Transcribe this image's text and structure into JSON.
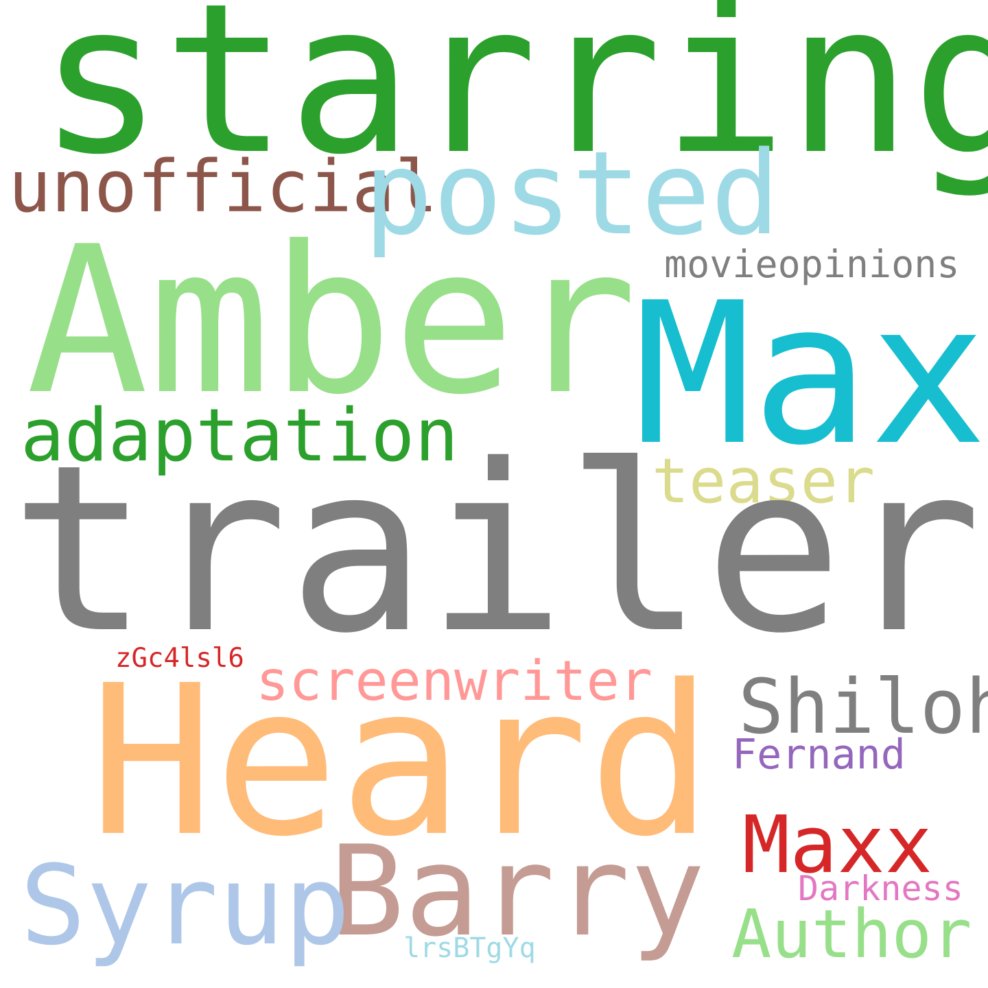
{
  "words": {
    "starring": {
      "text": "starring",
      "color": "#2ca02c"
    },
    "unofficial": {
      "text": "unofficial",
      "color": "#8c564b"
    },
    "posted": {
      "text": "posted",
      "color": "#9edae5"
    },
    "amber": {
      "text": "Amber",
      "color": "#98df8a"
    },
    "movieopinions": {
      "text": "movieopinions",
      "color": "#7f7f7f"
    },
    "max": {
      "text": "Max",
      "color": "#17becf"
    },
    "adaptation": {
      "text": "adaptation",
      "color": "#2ca02c"
    },
    "teaser": {
      "text": "teaser",
      "color": "#dbdb8d"
    },
    "trailer": {
      "text": "trailer",
      "color": "#7f7f7f"
    },
    "zgc4lsl6": {
      "text": "zGc4lsl6",
      "color": "#d62728"
    },
    "screenwriter": {
      "text": "screenwriter",
      "color": "#ff9896"
    },
    "shiloh": {
      "text": "Shiloh",
      "color": "#7f7f7f"
    },
    "heard": {
      "text": "Heard",
      "color": "#ffbb78"
    },
    "fernand": {
      "text": "Fernand",
      "color": "#9467bd"
    },
    "maxx": {
      "text": "Maxx",
      "color": "#d62728"
    },
    "barry": {
      "text": "Barry",
      "color": "#c49c94"
    },
    "syrup": {
      "text": "Syrup",
      "color": "#aec7e8"
    },
    "darkness": {
      "text": "Darkness",
      "color": "#e377c2"
    },
    "author": {
      "text": "Author",
      "color": "#98df8a"
    },
    "lrsbtgyq": {
      "text": "lrsBTgYq",
      "color": "#9edae5"
    }
  }
}
